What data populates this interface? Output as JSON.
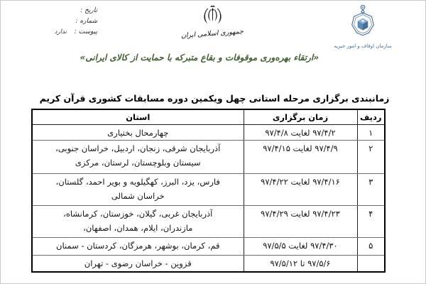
{
  "letterhead": {
    "meta_fields": [
      {
        "label": "تاریخ :",
        "value": ""
      },
      {
        "label": "شماره :",
        "value": ""
      },
      {
        "label": "پیوست :",
        "value": "ندارد"
      }
    ],
    "emblem_caption": "جمهوری اسلامی ایران",
    "org_caption": "سازمان اوقاف و امور خیریه",
    "slogan": "«ارتقاء بهره‌وری موقوفات و بقاع متبرکه با حمایت از کالای ایرانی»",
    "colors": {
      "slogan_green": "#40602e",
      "org_blue": "#41719f",
      "ink_black": "#1a1a1a"
    },
    "icons": {
      "center": "iran-emblem-icon",
      "right": "awqaf-logo-icon"
    }
  },
  "document": {
    "title": "زمانبندی برگزاری مرحله استانی چهل ویکمین دوره مسابقات کشوری قرآن کریم",
    "table": {
      "headers": [
        "ردیف",
        "زمان برگزاری",
        "استان"
      ],
      "rows": [
        {
          "no": "۱",
          "time": "۹۷/۴/۲ لغایت ۹۷/۴/۸",
          "provinces": "چهارمحال بختیاری"
        },
        {
          "no": "۲",
          "time": "۹۷/۴/۹ لغایت ۹۷/۴/۱۵",
          "provinces": "آذربایجان شرقی، زنجان، اردبیل، خراسان جنوبی،\nسیستان وبلوچستان، لرستان، مرکزی"
        },
        {
          "no": "۳",
          "time": "۹۷/۴/۱۶ لغایت ۹۷/۴/۲۲",
          "provinces": "فارس، یزد، البرز، کهگیلویه و بویر احمد، گلستان،\nخراسان شمالی"
        },
        {
          "no": "۴",
          "time": "۹۷/۴/۲۳ لغایت ۹۷/۴/۲۹",
          "provinces": "آذربایجان غربی، گیلان، خوزستان، کرمانشاه،\nمازندران، ایلام، همدان، اصفهان،"
        },
        {
          "no": "۵",
          "time": "۹۷/۴/۳۰ لغایت ۹۷/۵/۵",
          "provinces": "قم، کرمان، بوشهر، هرمزگان، کردستان - سمنان"
        },
        {
          "no": "",
          "time": "۹۷/۵/۶ تا ۹۷/۵/۱۲",
          "provinces": "قزوین - خراسان رضوی - تهران"
        }
      ]
    }
  }
}
